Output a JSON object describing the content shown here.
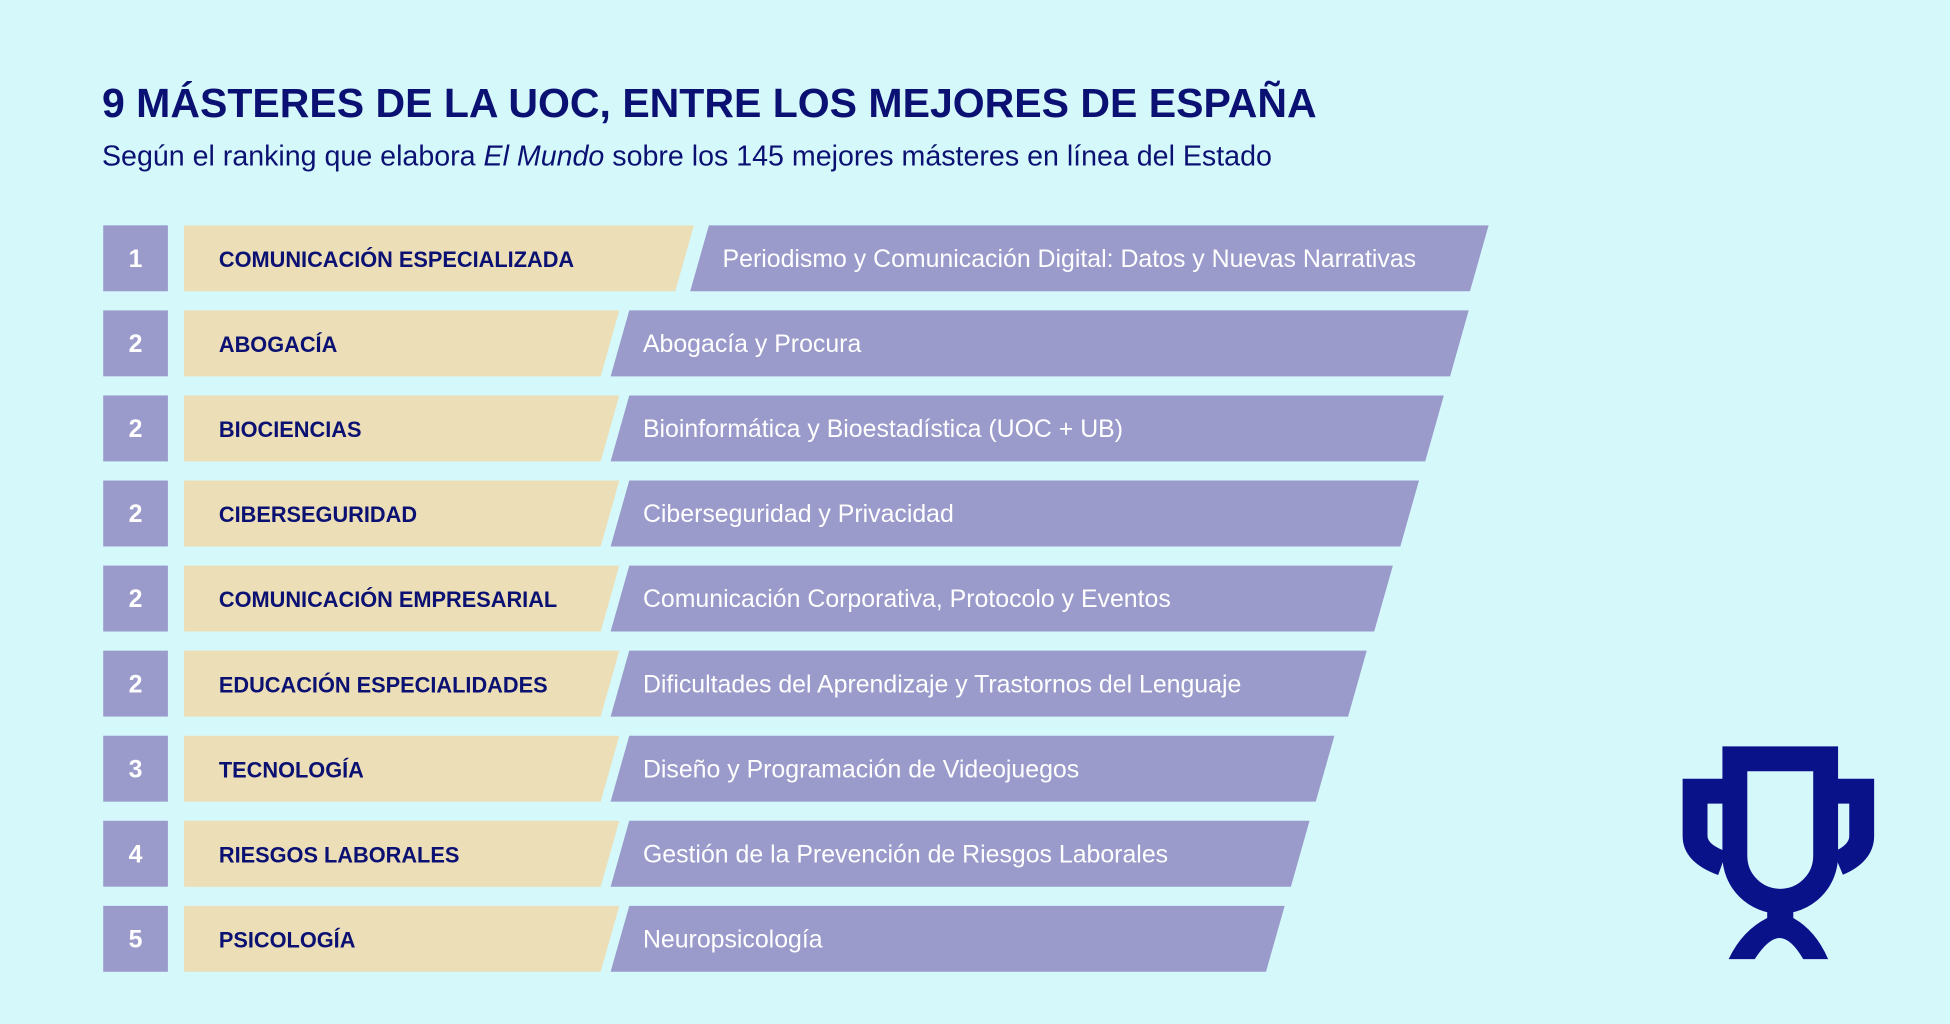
{
  "header": {
    "title": "9 MÁSTERES DE LA UOC, ENTRE LOS MEJORES DE ESPAÑA",
    "subtitle_before": "Según el ranking que elabora ",
    "subtitle_italic": "El Mundo",
    "subtitle_after": " sobre los 145 mejores másteres en línea del Estado"
  },
  "rows": [
    {
      "rank": 1,
      "area": "COMUNICACIÓN ESPECIALIZADA",
      "master": "Periodismo y Comunicación Digital: Datos y Nuevas Narrativas"
    },
    {
      "rank": 2,
      "area": "ABOGACÍA",
      "master": "Abogacía y Procura"
    },
    {
      "rank": 2,
      "area": "BIOCIENCIAS",
      "master": "Bioinformática y Bioestadística (UOC + UB)"
    },
    {
      "rank": 2,
      "area": "CIBERSEGURIDAD",
      "master": "Ciberseguridad y Privacidad"
    },
    {
      "rank": 2,
      "area": "COMUNICACIÓN EMPRESARIAL",
      "master": "Comunicación Corporativa, Protocolo y Eventos"
    },
    {
      "rank": 2,
      "area": "EDUCACIÓN ESPECIALIDADES",
      "master": "Dificultades del Aprendizaje y Trastornos del Lenguaje"
    },
    {
      "rank": 3,
      "area": "TECNOLOGÍA",
      "master": "Diseño y Programación de Videojuegos"
    },
    {
      "rank": 4,
      "area": "RIESGOS LABORALES",
      "master": "Gestión de la Prevención de Riesgos Laborales"
    },
    {
      "rank": 5,
      "area": "PSICOLOGÍA",
      "master": "Neuropsicología"
    }
  ]
}
